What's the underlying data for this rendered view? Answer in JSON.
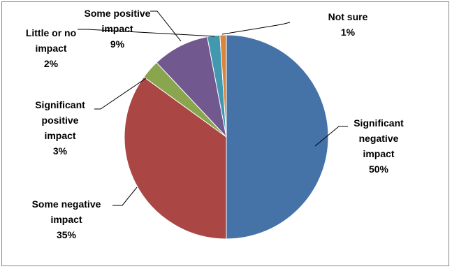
{
  "chart_data": {
    "type": "pie",
    "title": "",
    "series": [
      {
        "name": "",
        "labels": [
          "Significant negative impact",
          "Some negative impact",
          "Significant positive impact",
          "Some positive impact",
          "Little or no impact",
          "Not sure"
        ],
        "values": [
          50,
          35,
          3,
          9,
          2,
          1
        ]
      }
    ],
    "slices": [
      {
        "name": "Significant negative impact",
        "label_lines": [
          "Significant",
          "negative",
          "impact"
        ],
        "percent_label": "50%",
        "value": 50,
        "color": "#4572A7"
      },
      {
        "name": "Some negative impact",
        "label_lines": [
          "Some negative",
          "impact"
        ],
        "percent_label": "35%",
        "value": 35,
        "color": "#AA4643"
      },
      {
        "name": "Significant positive impact",
        "label_lines": [
          "Significant",
          "positive",
          "impact"
        ],
        "percent_label": "3%",
        "value": 3,
        "color": "#89A54E"
      },
      {
        "name": "Some positive impact",
        "label_lines": [
          "Some positive",
          "impact"
        ],
        "percent_label": "9%",
        "value": 9,
        "color": "#71588F"
      },
      {
        "name": "Little or no impact",
        "label_lines": [
          "Little or no",
          "impact"
        ],
        "percent_label": "2%",
        "value": 2,
        "color": "#4198AF"
      },
      {
        "name": "Not sure",
        "label_lines": [
          "Not sure"
        ],
        "percent_label": "1%",
        "value": 1,
        "color": "#DB843D"
      }
    ],
    "legend": "none",
    "data_labels": "outside-with-leader-lines"
  }
}
